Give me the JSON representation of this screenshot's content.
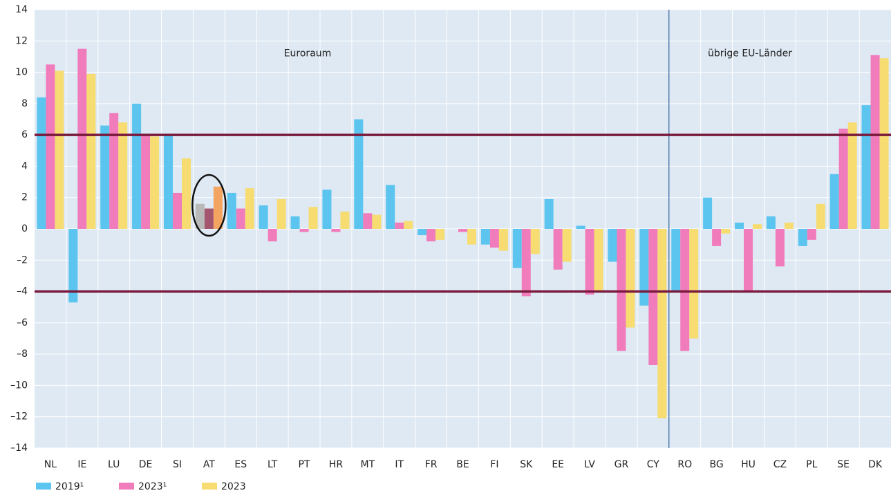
{
  "chart_data": {
    "type": "bar",
    "categories": [
      "NL",
      "IE",
      "LU",
      "DE",
      "SI",
      "AT",
      "ES",
      "LT",
      "PT",
      "HR",
      "MT",
      "IT",
      "FR",
      "BE",
      "FI",
      "SK",
      "EE",
      "LV",
      "GR",
      "CY",
      "RO",
      "BG",
      "HU",
      "CZ",
      "PL",
      "SE",
      "DK"
    ],
    "series": [
      {
        "name": "2019¹",
        "color": "#5bc5ef",
        "values": [
          8.4,
          -4.7,
          6.6,
          8.0,
          6.0,
          1.6,
          2.3,
          1.5,
          0.8,
          2.5,
          7.0,
          2.8,
          -0.4,
          0,
          -1.0,
          -2.5,
          1.9,
          0.2,
          -2.1,
          -4.9,
          -4.0,
          2.0,
          0.4,
          0.8,
          -1.1,
          3.5,
          7.9
        ]
      },
      {
        "name": "2023¹",
        "color": "#f17cbb",
        "values": [
          10.5,
          11.5,
          7.4,
          6.0,
          2.3,
          1.3,
          1.3,
          -0.8,
          -0.2,
          -0.2,
          1.0,
          0.4,
          -0.8,
          -0.2,
          -1.2,
          -4.3,
          -2.6,
          -4.2,
          -7.8,
          -8.7,
          -7.8,
          -1.1,
          -4.0,
          -2.4,
          -0.7,
          6.4,
          11.1
        ]
      },
      {
        "name": "2023",
        "color": "#f7dc72",
        "values": [
          10.1,
          9.9,
          6.8,
          5.9,
          4.5,
          2.7,
          2.6,
          1.9,
          1.4,
          1.1,
          0.9,
          0.5,
          -0.7,
          -1.0,
          -1.4,
          -1.6,
          -2.1,
          -4.0,
          -6.3,
          -12.1,
          -7.0,
          -0.3,
          0.3,
          0.4,
          1.6,
          6.8,
          10.9
        ]
      }
    ],
    "highlight": {
      "category": "AT",
      "colors": [
        "#b9b9b9",
        "#a5566f",
        "#f3a460"
      ]
    },
    "divider_after": "CY",
    "annotations": [
      "Euroraum",
      "übrige EU-Länder"
    ],
    "reference_lines": [
      6,
      -4
    ],
    "reference_color": "#7a1a3c",
    "ylim": [
      -14,
      14
    ],
    "yticks": [
      {
        "value": -14,
        "label": "–14"
      },
      {
        "value": -12,
        "label": "–12"
      },
      {
        "value": -10,
        "label": "–10"
      },
      {
        "value": -8,
        "label": "–8"
      },
      {
        "value": -6,
        "label": "–6"
      },
      {
        "value": -4,
        "label": "–4"
      },
      {
        "value": -2,
        "label": "–2"
      },
      0,
      2,
      4,
      6,
      8,
      10,
      12,
      14
    ],
    "grid": true
  }
}
